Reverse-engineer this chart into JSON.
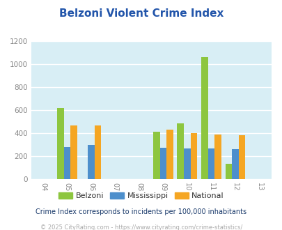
{
  "title": "Belzoni Violent Crime Index",
  "title_color": "#2255aa",
  "plot_bg_color": "#d8eef5",
  "fig_bg_color": "#ffffff",
  "years": [
    2005,
    2006,
    2009,
    2010,
    2011,
    2012
  ],
  "belzoni": [
    620,
    0,
    415,
    485,
    1065,
    135
  ],
  "mississippi": [
    280,
    300,
    275,
    270,
    268,
    262
  ],
  "national": [
    472,
    472,
    432,
    403,
    388,
    387
  ],
  "belzoni_color": "#8dc63f",
  "mississippi_color": "#4d8fcc",
  "national_color": "#f5a623",
  "xlim": [
    2003.5,
    2013.5
  ],
  "ylim": [
    0,
    1200
  ],
  "yticks": [
    0,
    200,
    400,
    600,
    800,
    1000,
    1200
  ],
  "xticks": [
    2004,
    2005,
    2006,
    2007,
    2008,
    2009,
    2010,
    2011,
    2012,
    2013
  ],
  "legend_labels": [
    "Belzoni",
    "Mississippi",
    "National"
  ],
  "footnote1": "Crime Index corresponds to incidents per 100,000 inhabitants",
  "footnote2": "© 2025 CityRating.com - https://www.cityrating.com/crime-statistics/",
  "footnote1_color": "#1a3a6b",
  "footnote2_color": "#aaaaaa",
  "tick_color": "#888888",
  "grid_color": "#ffffff",
  "bar_width": 0.28
}
